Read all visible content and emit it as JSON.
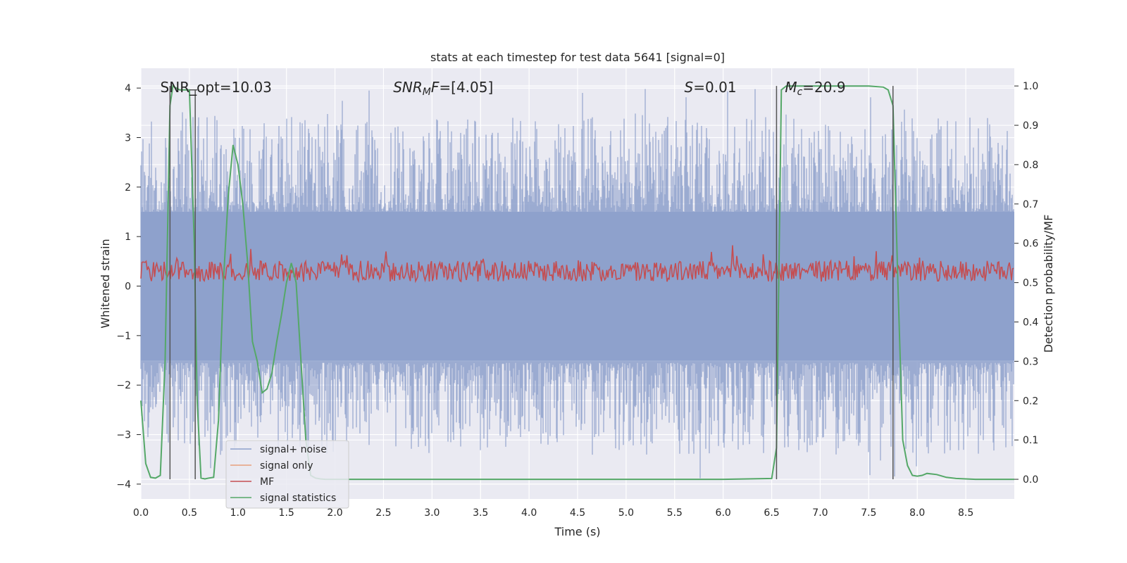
{
  "chart_data": {
    "type": "line",
    "title": "stats at each timestep for test data 5641 [signal=0]",
    "xlabel": "Time (s)",
    "ylabel": "Whitened strain",
    "ylabel_right": "Detection probability/MF",
    "xlim": [
      0.0,
      9.0
    ],
    "ylim": [
      -4.3,
      4.4
    ],
    "ylim_right": [
      -0.05,
      1.045
    ],
    "grid": true,
    "legend_position": "lower-left",
    "x_ticks": [
      0.0,
      0.5,
      1.0,
      1.5,
      2.0,
      2.5,
      3.0,
      3.5,
      4.0,
      4.5,
      5.0,
      5.5,
      6.0,
      6.5,
      7.0,
      7.5,
      8.0,
      8.5
    ],
    "x_tick_labels": [
      "0.0",
      "0.5",
      "1.0",
      "1.5",
      "2.0",
      "2.5",
      "3.0",
      "3.5",
      "4.0",
      "4.5",
      "5.0",
      "5.5",
      "6.0",
      "6.5",
      "7.0",
      "7.5",
      "8.0",
      "8.5"
    ],
    "y_ticks": [
      4,
      3,
      2,
      1,
      0,
      -1,
      -2,
      -3,
      -4
    ],
    "y_tick_labels": [
      "4",
      "3",
      "2",
      "1",
      "0",
      "−1",
      "−2",
      "−3",
      "−4"
    ],
    "y_right_ticks": [
      1.0,
      0.9,
      0.8,
      0.7,
      0.6,
      0.5,
      0.4,
      0.3,
      0.2,
      0.1,
      0.0
    ],
    "y_right_tick_labels": [
      "1.0",
      "0.9",
      "0.8",
      "0.7",
      "0.6",
      "0.5",
      "0.4",
      "0.3",
      "0.2",
      "0.1",
      "0.0"
    ],
    "annotations": [
      {
        "text": "SNR_opt=10.03",
        "x": 0.2,
        "y": 4.0
      },
      {
        "text": "SNRMF=[4.05]",
        "x": 2.6,
        "y": 4.0
      },
      {
        "text": "S=0.01",
        "x": 5.6,
        "y": 4.0
      },
      {
        "text": "Mc=20.9",
        "x": 6.6,
        "y": 4.0
      }
    ],
    "series": [
      {
        "name": "signal+ noise",
        "color": "#8da0cb",
        "axis": "left",
        "description_values": {
          "upper_envelope_typical": [
            1.5,
            2.5
          ],
          "lower_envelope_typical": [
            -1.5,
            -2.8
          ],
          "max": 4.0,
          "min": -3.9
        }
      },
      {
        "name": "signal only",
        "color": "#e8a07c",
        "axis": "left",
        "values": []
      },
      {
        "name": "MF",
        "color": "#c44e52",
        "axis": "left",
        "range": [
          0.0,
          1.0
        ],
        "mean": 0.3
      },
      {
        "name": "signal statistics",
        "color": "#55a868",
        "axis": "right",
        "x": [
          0.0,
          0.05,
          0.1,
          0.15,
          0.2,
          0.25,
          0.3,
          0.33,
          0.36,
          0.4,
          0.45,
          0.5,
          0.55,
          0.58,
          0.62,
          0.66,
          0.7,
          0.75,
          0.8,
          0.85,
          0.9,
          0.95,
          1.0,
          1.05,
          1.1,
          1.15,
          1.2,
          1.25,
          1.3,
          1.35,
          1.4,
          1.45,
          1.5,
          1.55,
          1.6,
          1.65,
          1.7,
          1.75,
          1.8,
          1.85,
          1.9,
          1.95,
          2.0,
          2.5,
          3.0,
          3.5,
          4.0,
          4.5,
          5.0,
          5.5,
          6.0,
          6.5,
          6.55,
          6.6,
          6.65,
          6.7,
          7.0,
          7.5,
          7.65,
          7.7,
          7.75,
          7.8,
          7.85,
          7.9,
          7.95,
          8.0,
          8.05,
          8.1,
          8.2,
          8.3,
          8.4,
          8.5,
          8.6,
          8.8,
          9.0
        ],
        "y": [
          0.2,
          0.04,
          0.005,
          0.003,
          0.01,
          0.3,
          0.95,
          1.0,
          0.995,
          0.99,
          0.99,
          0.99,
          0.6,
          0.2,
          0.003,
          0.001,
          0.003,
          0.005,
          0.15,
          0.5,
          0.72,
          0.85,
          0.8,
          0.7,
          0.55,
          0.35,
          0.3,
          0.22,
          0.23,
          0.27,
          0.35,
          0.42,
          0.5,
          0.55,
          0.5,
          0.3,
          0.1,
          0.01,
          0.003,
          0.001,
          0.0,
          0.0,
          0.0,
          0.0,
          0.0,
          0.0,
          0.0,
          0.0,
          0.0,
          0.0,
          0.0,
          0.002,
          0.08,
          0.99,
          1.0,
          1.0,
          1.0,
          1.0,
          0.997,
          0.99,
          0.95,
          0.5,
          0.1,
          0.035,
          0.01,
          0.008,
          0.01,
          0.015,
          0.012,
          0.005,
          0.002,
          0.001,
          0.0,
          0.0,
          0.0
        ]
      }
    ],
    "vertical_markers": [
      {
        "x": 0.3,
        "y_top": 1.0,
        "y_bottom": 0.0
      },
      {
        "x": 0.56,
        "y_top": 0.99,
        "y_bottom": 0.0
      },
      {
        "x": 6.55,
        "y_top": 1.0,
        "y_bottom": 0.0
      },
      {
        "x": 7.75,
        "y_top": 1.0,
        "y_bottom": 0.0
      }
    ],
    "horizontal_markers": [
      {
        "x_start": 0.5,
        "x_end": 0.58,
        "y": 0.99
      }
    ]
  }
}
